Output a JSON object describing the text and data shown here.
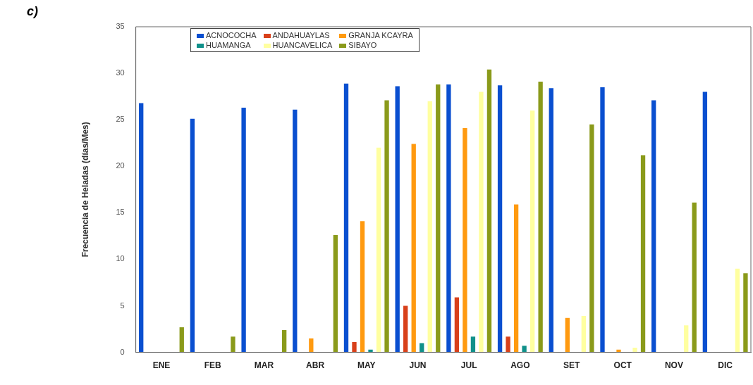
{
  "chart_data": {
    "type": "bar",
    "annotations": [
      "c)"
    ],
    "ylabel": "Frecuencia de Heladas (días/Mes)",
    "categories": [
      "ENE",
      "FEB",
      "MAR",
      "ABR",
      "MAY",
      "JUN",
      "JUL",
      "AGO",
      "SET",
      "OCT",
      "NOV",
      "DIC"
    ],
    "series": [
      {
        "name": "ACNOCOCHA",
        "color": "#0a4fd0",
        "values": [
          26.8,
          25.1,
          26.3,
          26.1,
          28.9,
          28.6,
          28.8,
          28.7,
          28.4,
          28.5,
          27.1,
          28.0
        ]
      },
      {
        "name": "ANDAHUAYLAS",
        "color": "#d8401a",
        "values": [
          0,
          0,
          0,
          0,
          1.1,
          5.0,
          5.9,
          1.7,
          0,
          0,
          0,
          0
        ]
      },
      {
        "name": "GRANJA KCAYRA",
        "color": "#ff9a10",
        "values": [
          0,
          0,
          0,
          1.5,
          14.1,
          22.4,
          24.1,
          15.9,
          3.7,
          0.3,
          0,
          0
        ]
      },
      {
        "name": "HUAMANGA",
        "color": "#10908a",
        "values": [
          0,
          0,
          0,
          0,
          0.3,
          1.0,
          1.7,
          0.7,
          0,
          0,
          0,
          0
        ]
      },
      {
        "name": "HUANCAVELICA",
        "color": "#ffffa0",
        "values": [
          0,
          0,
          0,
          0,
          22,
          27,
          28,
          26,
          3.9,
          0.5,
          2.9,
          9
        ]
      },
      {
        "name": "SIBAYO",
        "color": "#8a9a1a",
        "values": [
          2.7,
          1.7,
          2.4,
          12.6,
          27.1,
          28.8,
          30.4,
          29.1,
          24.5,
          21.2,
          16.1,
          8.5
        ]
      }
    ],
    "ylim": [
      0,
      35
    ],
    "yticks": [
      0,
      5,
      10,
      15,
      20,
      25,
      30,
      35
    ],
    "grid": false,
    "legend": "top left"
  }
}
